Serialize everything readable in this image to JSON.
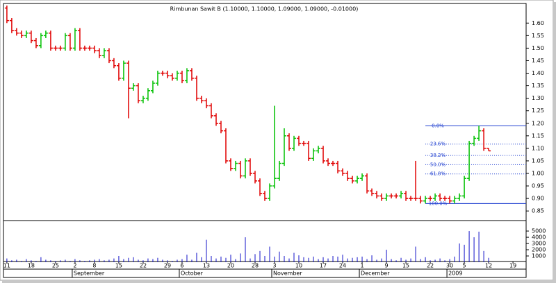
{
  "chart_data": {
    "type": "ohlc",
    "title": "Rimbunan Sawit B (1.10000, 1.10000, 1.09000, 1.09000, -0.01000)",
    "open": [
      1.66,
      1.61,
      1.57,
      1.56,
      1.55,
      1.56,
      1.53,
      1.51,
      1.55,
      1.56,
      1.5,
      1.5,
      1.5,
      1.55,
      1.5,
      1.57,
      1.5,
      1.5,
      1.5,
      1.49,
      1.47,
      1.49,
      1.45,
      1.43,
      1.38,
      1.44,
      1.34,
      1.35,
      1.29,
      1.3,
      1.33,
      1.36,
      1.4,
      1.4,
      1.39,
      1.38,
      1.4,
      1.37,
      1.41,
      1.38,
      1.3,
      1.29,
      1.27,
      1.23,
      1.2,
      1.17,
      1.05,
      1.02,
      1.04,
      0.99,
      1.05,
      1.0,
      0.97,
      0.92,
      0.9,
      0.95,
      0.98,
      1.04,
      1.15,
      1.1,
      1.14,
      1.12,
      1.12,
      1.06,
      1.09,
      1.1,
      1.05,
      1.04,
      1.04,
      1.01,
      1.0,
      0.98,
      0.97,
      0.98,
      0.99,
      0.93,
      0.92,
      0.91,
      0.9,
      0.91,
      0.91,
      0.91,
      0.92,
      0.9,
      0.9,
      0.9,
      0.89,
      0.9,
      0.9,
      0.91,
      0.9,
      0.9,
      0.89,
      0.9,
      0.91,
      0.98,
      1.12,
      1.14,
      1.17,
      1.1
    ],
    "high": [
      1.67,
      1.62,
      1.58,
      1.57,
      1.57,
      1.57,
      1.54,
      1.56,
      1.57,
      1.57,
      1.51,
      1.51,
      1.56,
      1.56,
      1.58,
      1.58,
      1.51,
      1.51,
      1.51,
      1.5,
      1.5,
      1.5,
      1.46,
      1.44,
      1.45,
      1.45,
      1.36,
      1.36,
      1.31,
      1.34,
      1.37,
      1.41,
      1.41,
      1.41,
      1.4,
      1.41,
      1.41,
      1.42,
      1.42,
      1.39,
      1.31,
      1.3,
      1.28,
      1.24,
      1.21,
      1.18,
      1.06,
      1.05,
      1.05,
      1.06,
      1.06,
      1.01,
      0.98,
      0.93,
      0.96,
      1.27,
      1.05,
      1.18,
      1.16,
      1.15,
      1.15,
      1.13,
      1.13,
      1.1,
      1.11,
      1.11,
      1.06,
      1.05,
      1.05,
      1.02,
      1.01,
      0.99,
      0.99,
      1.0,
      1.0,
      0.94,
      0.93,
      0.92,
      0.92,
      0.92,
      0.92,
      0.93,
      0.93,
      0.91,
      1.05,
      0.91,
      0.91,
      0.91,
      0.92,
      0.92,
      0.91,
      0.91,
      0.91,
      0.92,
      0.99,
      1.13,
      1.15,
      1.19,
      1.18,
      1.1
    ],
    "low": [
      1.6,
      1.56,
      1.55,
      1.54,
      1.54,
      1.52,
      1.5,
      1.5,
      1.54,
      1.49,
      1.49,
      1.49,
      1.49,
      1.49,
      1.49,
      1.49,
      1.49,
      1.49,
      1.48,
      1.46,
      1.46,
      1.44,
      1.42,
      1.37,
      1.37,
      1.22,
      1.33,
      1.28,
      1.28,
      1.29,
      1.32,
      1.35,
      1.39,
      1.38,
      1.37,
      1.37,
      1.36,
      1.36,
      1.37,
      1.29,
      1.28,
      1.26,
      1.22,
      1.19,
      1.16,
      1.04,
      1.01,
      1.01,
      0.98,
      0.98,
      0.99,
      0.96,
      0.91,
      0.89,
      0.89,
      0.94,
      0.97,
      1.03,
      1.09,
      1.09,
      1.11,
      1.11,
      1.05,
      1.05,
      1.08,
      1.04,
      1.03,
      1.03,
      1.0,
      0.99,
      0.97,
      0.96,
      0.96,
      0.97,
      0.92,
      0.91,
      0.9,
      0.89,
      0.89,
      0.9,
      0.9,
      0.9,
      0.89,
      0.89,
      0.89,
      0.88,
      0.88,
      0.89,
      0.89,
      0.89,
      0.89,
      0.88,
      0.88,
      0.89,
      0.9,
      0.97,
      1.11,
      1.13,
      1.09,
      1.09
    ],
    "close": [
      1.61,
      1.57,
      1.56,
      1.55,
      1.56,
      1.53,
      1.51,
      1.55,
      1.56,
      1.5,
      1.5,
      1.5,
      1.55,
      1.5,
      1.57,
      1.5,
      1.5,
      1.5,
      1.49,
      1.47,
      1.49,
      1.45,
      1.43,
      1.38,
      1.44,
      1.34,
      1.35,
      1.29,
      1.3,
      1.33,
      1.36,
      1.4,
      1.4,
      1.39,
      1.38,
      1.4,
      1.37,
      1.41,
      1.38,
      1.3,
      1.29,
      1.27,
      1.23,
      1.2,
      1.17,
      1.05,
      1.02,
      1.04,
      0.99,
      1.05,
      1.0,
      0.97,
      0.92,
      0.9,
      0.95,
      0.98,
      1.04,
      1.15,
      1.1,
      1.14,
      1.12,
      1.12,
      1.06,
      1.09,
      1.1,
      1.05,
      1.04,
      1.04,
      1.01,
      1.0,
      0.98,
      0.97,
      0.98,
      0.99,
      0.93,
      0.92,
      0.91,
      0.9,
      0.91,
      0.91,
      0.91,
      0.92,
      0.9,
      0.9,
      0.9,
      0.89,
      0.9,
      0.9,
      0.91,
      0.9,
      0.9,
      0.89,
      0.9,
      0.91,
      0.98,
      1.12,
      1.14,
      1.17,
      1.1,
      1.09
    ],
    "volume": [
      600,
      300,
      400,
      200,
      500,
      300,
      200,
      800,
      400,
      300,
      200,
      300,
      400,
      200,
      500,
      300,
      200,
      300,
      400,
      500,
      300,
      400,
      600,
      1000,
      500,
      700,
      800,
      400,
      300,
      600,
      500,
      700,
      400,
      300,
      200,
      400,
      500,
      1200,
      400,
      1500,
      800,
      3600,
      1000,
      600,
      900,
      700,
      1200,
      500,
      1400,
      4000,
      600,
      1300,
      1800,
      1000,
      2500,
      900,
      1700,
      1000,
      600,
      1500,
      1100,
      800,
      700,
      900,
      500,
      800,
      600,
      1000,
      900,
      1200,
      600,
      700,
      800,
      900,
      500,
      1100,
      400,
      600,
      2000,
      500,
      300,
      700,
      400,
      600,
      2500,
      500,
      800,
      300,
      400,
      600,
      300,
      500,
      900,
      3000,
      2800,
      5000,
      4000,
      4900,
      1800,
      700
    ],
    "ylim": [
      0.82,
      1.67
    ],
    "yticks": [
      {
        "value": 0.85,
        "label": "0.85"
      },
      {
        "value": 0.9,
        "label": "0.90"
      },
      {
        "value": 0.95,
        "label": "0.95"
      },
      {
        "value": 1.0,
        "label": "1.00"
      },
      {
        "value": 1.05,
        "label": "1.05"
      },
      {
        "value": 1.1,
        "label": "1.10"
      },
      {
        "value": 1.15,
        "label": "1.15"
      },
      {
        "value": 1.2,
        "label": "1.20"
      },
      {
        "value": 1.25,
        "label": "1.25"
      },
      {
        "value": 1.3,
        "label": "1.30"
      },
      {
        "value": 1.35,
        "label": "1.35"
      },
      {
        "value": 1.4,
        "label": "1.40"
      },
      {
        "value": 1.45,
        "label": "1.45"
      },
      {
        "value": 1.5,
        "label": "1.50"
      },
      {
        "value": 1.55,
        "label": "1.55"
      },
      {
        "value": 1.6,
        "label": "1.60"
      }
    ],
    "volume_ylim": [
      0,
      5900
    ],
    "volume_yticks": [
      1000,
      2000,
      3000,
      4000,
      5000
    ],
    "xlim": [
      -0.7,
      106.7
    ],
    "xticks": [
      {
        "value": 0,
        "label": "11"
      },
      {
        "value": 5,
        "label": "18"
      },
      {
        "value": 10,
        "label": "25"
      },
      {
        "value": 14,
        "label": "2"
      },
      {
        "value": 18,
        "label": "8"
      },
      {
        "value": 23,
        "label": "15"
      },
      {
        "value": 28,
        "label": "22"
      },
      {
        "value": 33,
        "label": "29"
      },
      {
        "value": 36,
        "label": "6"
      },
      {
        "value": 41,
        "label": "13"
      },
      {
        "value": 46,
        "label": "20"
      },
      {
        "value": 51,
        "label": "28"
      },
      {
        "value": 55,
        "label": "3"
      },
      {
        "value": 60,
        "label": "10"
      },
      {
        "value": 65,
        "label": "17"
      },
      {
        "value": 69,
        "label": "24"
      },
      {
        "value": 73,
        "label": "1"
      },
      {
        "value": 78,
        "label": "9"
      },
      {
        "value": 82,
        "label": "15"
      },
      {
        "value": 87,
        "label": "22"
      },
      {
        "value": 91,
        "label": "30"
      },
      {
        "value": 94,
        "label": "5"
      },
      {
        "value": 99,
        "label": "12"
      },
      {
        "value": 104,
        "label": "19"
      }
    ],
    "month_ticks": [
      {
        "value": 14,
        "label": "September"
      },
      {
        "value": 36,
        "label": "October"
      },
      {
        "value": 55,
        "label": "November"
      },
      {
        "value": 73,
        "label": "December"
      },
      {
        "value": 91,
        "label": "2009"
      }
    ],
    "fib_levels": [
      {
        "value": 1.19,
        "label": "0.0%"
      },
      {
        "value": 1.117,
        "label": "23.6%"
      },
      {
        "value": 1.0716,
        "label": "38.2%"
      },
      {
        "value": 1.035,
        "label": "50.0%"
      },
      {
        "value": 0.998,
        "label": "61.8%"
      },
      {
        "value": 0.88,
        "label": "100.0%"
      }
    ],
    "up_color": "#00c000",
    "down_color": "#e00000",
    "volume_color": "#1010c8",
    "fib_color": "#1f3fd0"
  }
}
